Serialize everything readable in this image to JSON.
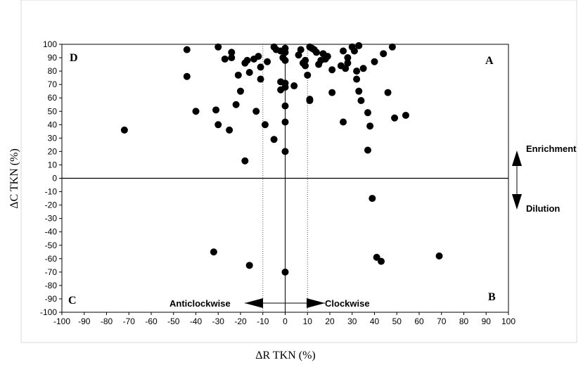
{
  "chart_data": {
    "type": "scatter",
    "xlabel": "ΔR TKN (%)",
    "ylabel": "ΔC TKN (%)",
    "xlim": [
      -100,
      100
    ],
    "ylim": [
      -100,
      100
    ],
    "x_ticks": [
      "-100",
      "-90",
      "-80",
      "-70",
      "-60",
      "-50",
      "-40",
      "-30",
      "-20",
      "-10",
      "0",
      "10",
      "20",
      "30",
      "40",
      "50",
      "60",
      "70",
      "80",
      "90",
      "100"
    ],
    "y_ticks": [
      "100",
      "90",
      "80",
      "70",
      "60",
      "50",
      "40",
      "30",
      "20",
      "10",
      "0",
      "-10",
      "-20",
      "-30",
      "-40",
      "-50",
      "-60",
      "-70",
      "-80",
      "-90",
      "-100"
    ],
    "quadrant_labels": {
      "top_left": "D",
      "top_right": "A",
      "bottom_left": "C",
      "bottom_right": "B"
    },
    "annotations": {
      "enrichment": "Enrichment",
      "dilution": "Dilution",
      "anticlockwise": "Anticlockwise",
      "clockwise": "Clockwise"
    },
    "reference_lines": {
      "vertical_solid": 0,
      "vertical_dotted": [
        -10,
        10
      ],
      "horizontal_solid": 0
    },
    "grid": false,
    "point_color": "#000000",
    "points": [
      [
        -72,
        36
      ],
      [
        -44,
        96
      ],
      [
        -44,
        76
      ],
      [
        -40,
        50
      ],
      [
        -30,
        98
      ],
      [
        -30,
        40
      ],
      [
        -31,
        51
      ],
      [
        -27,
        89
      ],
      [
        -25,
        36
      ],
      [
        -24,
        94
      ],
      [
        -24,
        90
      ],
      [
        -22,
        55
      ],
      [
        -21,
        77
      ],
      [
        -20,
        65
      ],
      [
        -18,
        86
      ],
      [
        -17,
        88
      ],
      [
        -18,
        13
      ],
      [
        -16,
        79
      ],
      [
        -14,
        89
      ],
      [
        -13,
        50
      ],
      [
        -12,
        91
      ],
      [
        -11,
        83
      ],
      [
        -11,
        74
      ],
      [
        -9,
        40
      ],
      [
        -8,
        87
      ],
      [
        -5,
        98
      ],
      [
        -5,
        29
      ],
      [
        -4,
        96
      ],
      [
        -2,
        95
      ],
      [
        -2,
        72
      ],
      [
        -2,
        66
      ],
      [
        -1,
        90
      ],
      [
        0,
        97
      ],
      [
        0,
        94
      ],
      [
        0,
        88
      ],
      [
        0,
        71
      ],
      [
        0,
        68
      ],
      [
        0,
        54
      ],
      [
        0,
        42
      ],
      [
        0,
        20
      ],
      [
        4,
        69
      ],
      [
        6,
        92
      ],
      [
        7,
        96
      ],
      [
        8,
        86
      ],
      [
        9,
        84
      ],
      [
        9,
        88
      ],
      [
        10,
        77
      ],
      [
        11,
        98
      ],
      [
        11,
        59
      ],
      [
        11,
        58
      ],
      [
        12,
        97
      ],
      [
        13,
        96
      ],
      [
        14,
        94
      ],
      [
        15,
        85
      ],
      [
        16,
        88
      ],
      [
        17,
        93
      ],
      [
        18,
        89
      ],
      [
        19,
        91
      ],
      [
        21,
        81
      ],
      [
        21,
        64
      ],
      [
        25,
        84
      ],
      [
        26,
        95
      ],
      [
        26,
        42
      ],
      [
        27,
        82
      ],
      [
        28,
        90
      ],
      [
        28,
        86
      ],
      [
        30,
        98
      ],
      [
        31,
        95
      ],
      [
        32,
        74
      ],
      [
        32,
        80
      ],
      [
        33,
        99
      ],
      [
        33,
        65
      ],
      [
        34,
        58
      ],
      [
        35,
        82
      ],
      [
        37,
        49
      ],
      [
        37,
        21
      ],
      [
        38,
        39
      ],
      [
        40,
        87
      ],
      [
        44,
        93
      ],
      [
        46,
        64
      ],
      [
        48,
        98
      ],
      [
        49,
        45
      ],
      [
        54,
        47
      ],
      [
        39,
        -15
      ],
      [
        -32,
        -55
      ],
      [
        -16,
        -65
      ],
      [
        0,
        -70
      ],
      [
        41,
        -59
      ],
      [
        43,
        -62
      ],
      [
        69,
        -58
      ]
    ]
  }
}
